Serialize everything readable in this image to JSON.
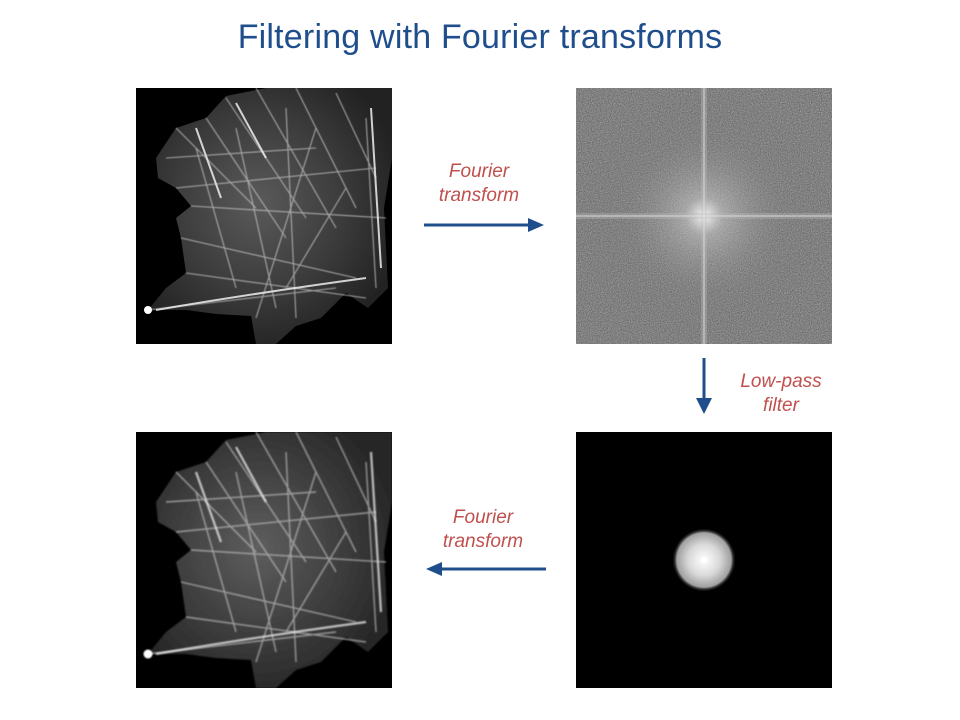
{
  "title": "Filtering with Fourier transforms",
  "labels": {
    "forward": [
      "Fourier",
      "transform"
    ],
    "lowpass": [
      "Low-pass",
      "filter"
    ],
    "inverse": [
      "Fourier",
      "transform"
    ]
  },
  "panels": {
    "original": "cell image",
    "spectrum": "fourier spectrum",
    "filtered_spectrum": "low-pass filtered spectrum",
    "reconstructed": "filtered cell image"
  },
  "colors": {
    "title": "#1f4e8c",
    "label": "#c0504d",
    "arrow": "#1f4e8c"
  }
}
